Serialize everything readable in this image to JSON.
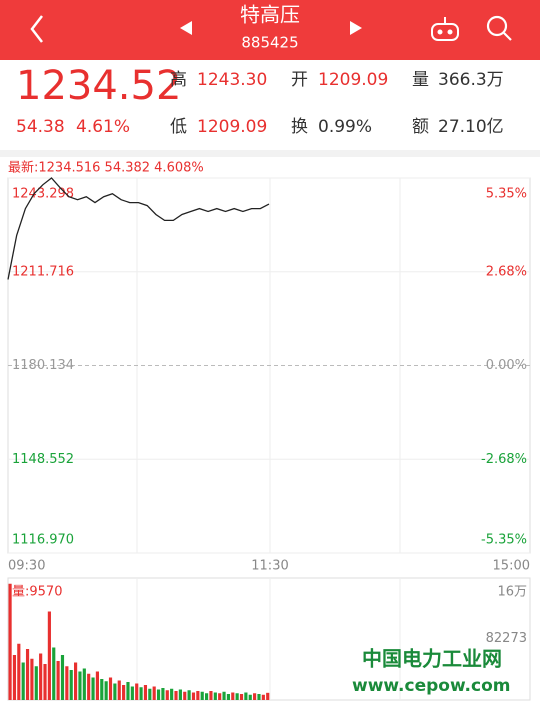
{
  "header": {
    "title": "特高压",
    "code": "885425"
  },
  "quote": {
    "price": "1234.52",
    "change": "54.38",
    "change_pct": "4.61%",
    "stats": [
      {
        "label": "高",
        "value": "1243.30"
      },
      {
        "label": "开",
        "value": "1209.09"
      },
      {
        "label": "量",
        "value": "366.3万"
      },
      {
        "label": "低",
        "value": "1209.09"
      },
      {
        "label": "换",
        "value": "0.99%"
      },
      {
        "label": "额",
        "value": "27.10亿"
      }
    ]
  },
  "chart": {
    "type": "line",
    "latest": "最新:1234.516 54.382 4.608%",
    "ylim": [
      1116.97,
      1243.298
    ],
    "yticks": [
      {
        "value": 1243.298,
        "label": "1243.298"
      },
      {
        "value": 1211.716,
        "label": "1211.716"
      },
      {
        "value": 1180.134,
        "label": "1180.134"
      },
      {
        "value": 1148.552,
        "label": "1148.552"
      },
      {
        "value": 1116.97,
        "label": "1116.970"
      }
    ],
    "pct_labels": [
      "5.35%",
      "2.68%",
      "0.00%",
      "-2.68%",
      "-5.35%"
    ],
    "tick_colors": [
      "#e8302f",
      "#e8302f",
      "#999999",
      "#1aa33a",
      "#1aa33a"
    ],
    "time_labels": [
      "09:30",
      "11:30",
      "15:00"
    ],
    "color": "#222222",
    "values": [
      1209.09,
      1224,
      1233,
      1238,
      1241,
      1243.3,
      1240,
      1237,
      1236,
      1237,
      1235,
      1237,
      1238,
      1236,
      1235,
      1235,
      1234,
      1231,
      1229,
      1229,
      1231,
      1232,
      1233,
      1232,
      1233,
      1232,
      1233,
      1232,
      1233,
      1233,
      1234.516
    ]
  },
  "volume": {
    "type": "bar",
    "label": "量:9570",
    "ylim": [
      0,
      160000
    ],
    "yticks": [
      {
        "value": 160000,
        "label": "16万"
      },
      82273
    ],
    "values": [
      155000,
      60000,
      75000,
      50000,
      68000,
      55000,
      45000,
      62000,
      48000,
      118000,
      70000,
      52000,
      60000,
      45000,
      40000,
      50000,
      38000,
      42000,
      35000,
      30000,
      38000,
      28000,
      25000,
      30000,
      22000,
      26000,
      20000,
      24000,
      18000,
      22000,
      17000,
      20000,
      15000,
      18000,
      14000,
      16000,
      13000,
      15000,
      12000,
      14000,
      11000,
      13000,
      10000,
      12000,
      11000,
      9000,
      12000,
      10000,
      9000,
      11000,
      8000,
      10000,
      9000,
      8000,
      10000,
      7000,
      9000,
      8000,
      7000,
      9570
    ],
    "colors": [
      "#e8302f",
      "#e8302f",
      "#e8302f",
      "#1aa33a",
      "#e8302f",
      "#e8302f",
      "#1aa33a",
      "#e8302f",
      "#e8302f",
      "#e8302f",
      "#1aa33a",
      "#e8302f",
      "#1aa33a",
      "#e8302f",
      "#1aa33a",
      "#e8302f",
      "#1aa33a",
      "#1aa33a",
      "#e8302f",
      "#1aa33a",
      "#e8302f",
      "#1aa33a",
      "#1aa33a",
      "#e8302f",
      "#1aa33a",
      "#e8302f",
      "#e8302f",
      "#1aa33a",
      "#1aa33a",
      "#e8302f",
      "#1aa33a",
      "#e8302f",
      "#1aa33a",
      "#e8302f",
      "#1aa33a",
      "#1aa33a",
      "#e8302f",
      "#1aa33a",
      "#e8302f",
      "#1aa33a",
      "#e8302f",
      "#1aa33a",
      "#e8302f",
      "#e8302f",
      "#1aa33a",
      "#1aa33a",
      "#e8302f",
      "#1aa33a",
      "#e8302f",
      "#1aa33a",
      "#1aa33a",
      "#e8302f",
      "#1aa33a",
      "#e8302f",
      "#1aa33a",
      "#1aa33a",
      "#e8302f",
      "#1aa33a",
      "#e8302f",
      "#e8302f"
    ]
  },
  "watermark": {
    "name": "中国电力工业网",
    "url": "www.cepow.com"
  }
}
